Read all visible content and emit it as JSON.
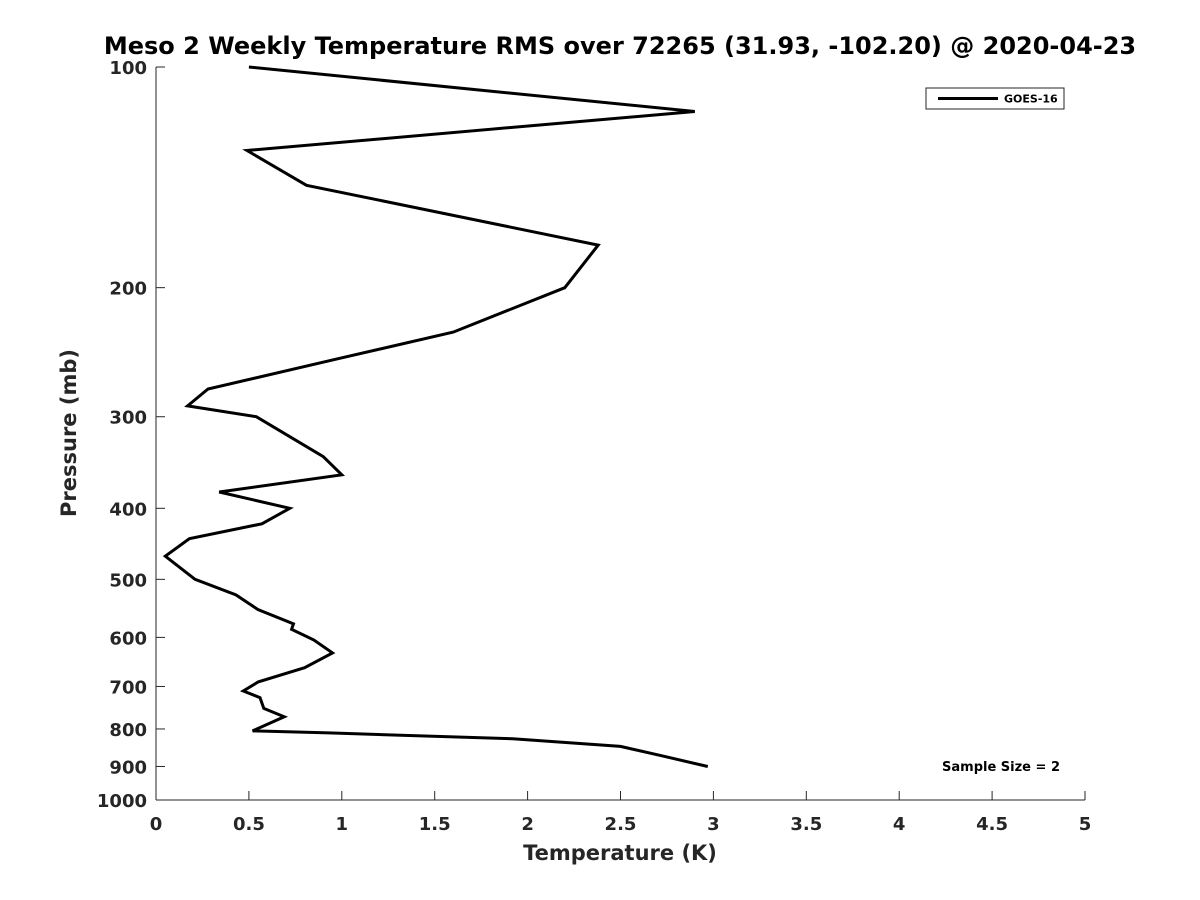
{
  "chart_data": {
    "type": "line",
    "title": "Meso 2 Weekly Temperature RMS over 72265 (31.93, -102.20) @ 2020-04-23",
    "xlabel": "Temperature (K)",
    "ylabel": "Pressure (mb)",
    "xlim": [
      0,
      5
    ],
    "ylim": [
      100,
      1000
    ],
    "y_scale": "log",
    "y_reversed": true,
    "x_ticks": [
      0,
      0.5,
      1,
      1.5,
      2,
      2.5,
      3,
      3.5,
      4,
      4.5,
      5
    ],
    "x_tick_labels": [
      "0",
      "0.5",
      "1",
      "1.5",
      "2",
      "2.5",
      "3",
      "3.5",
      "4",
      "4.5",
      "5"
    ],
    "y_ticks": [
      100,
      200,
      300,
      400,
      500,
      600,
      700,
      800,
      900,
      1000
    ],
    "y_tick_labels": [
      "100",
      "200",
      "300",
      "400",
      "500",
      "600",
      "700",
      "800",
      "900",
      "1000"
    ],
    "grid": false,
    "legend_position": "top-right",
    "annotation": "Sample Size = 2",
    "series": [
      {
        "name": "GOES-16",
        "color": "#000000",
        "x": [
          0.5,
          2.9,
          0.49,
          0.81,
          2.38,
          2.2,
          1.6,
          0.98,
          0.28,
          0.17,
          0.54,
          0.9,
          1.0,
          0.34,
          0.72,
          0.57,
          0.18,
          0.05,
          0.21,
          0.43,
          0.55,
          0.74,
          0.73,
          0.85,
          0.95,
          0.8,
          0.55,
          0.47,
          0.56,
          0.58,
          0.69,
          0.52,
          0.93,
          1.92,
          2.5,
          2.72,
          2.97
        ],
        "y": [
          100,
          115,
          130,
          145,
          175,
          200,
          230,
          250,
          275,
          290,
          300,
          340,
          360,
          380,
          400,
          420,
          440,
          465,
          500,
          525,
          550,
          575,
          585,
          605,
          630,
          660,
          690,
          710,
          725,
          750,
          770,
          805,
          810,
          825,
          845,
          870,
          900
        ]
      }
    ]
  }
}
